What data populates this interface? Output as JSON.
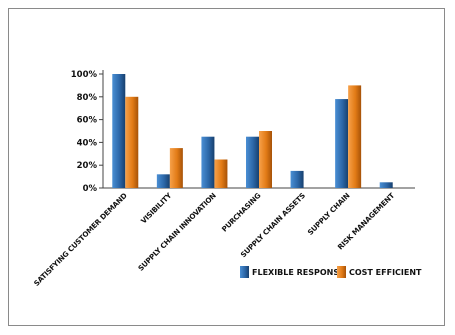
{
  "chart_data": {
    "type": "bar",
    "categories": [
      "SATISFYING CUSTOMER DEMAND",
      "VISIBILITY",
      "SUPPLY CHAIN INNOVATION",
      "PURCHASING",
      "SUPPLY CHAIN ASSETS",
      "SUPPLY CHAIN",
      "RISK MANAGEMENT"
    ],
    "series": [
      {
        "name": "FLEXIBLE RESPONSE",
        "values": [
          100,
          12,
          45,
          45,
          15,
          78,
          5
        ],
        "color": "#2f6fb0"
      },
      {
        "name": "COST EFFICIENT",
        "values": [
          80,
          35,
          25,
          50,
          0,
          90,
          0
        ],
        "color": "#e8821e"
      }
    ],
    "yticks": [
      "0%",
      "20%",
      "40%",
      "60%",
      "80%",
      "100%"
    ],
    "ylim": [
      0,
      100
    ],
    "legend": "bottom-right"
  }
}
